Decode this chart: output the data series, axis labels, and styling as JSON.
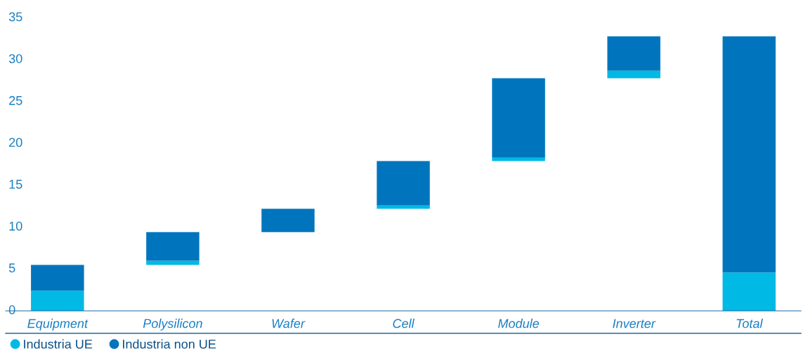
{
  "chart_data": {
    "type": "bar",
    "categories": [
      "Equipment",
      "Polysilicon",
      "Wafer",
      "Cell",
      "Module",
      "Inverter",
      "Total"
    ],
    "series": [
      {
        "name": "Industria UE",
        "color": "#00b9e4",
        "base": [
          0,
          5.5,
          null,
          12.2,
          17.9,
          27.8,
          0
        ],
        "values": [
          2.4,
          0.5,
          null,
          0.4,
          0.4,
          0.9,
          4.6
        ]
      },
      {
        "name": "Industria non UE",
        "color": "#0075be",
        "base": [
          2.4,
          6.0,
          9.4,
          12.6,
          18.3,
          28.7,
          4.6
        ],
        "values": [
          3.1,
          3.4,
          2.8,
          5.3,
          9.5,
          4.1,
          28.2
        ]
      }
    ],
    "ylim": [
      0,
      35
    ],
    "yticks": [
      0,
      5,
      10,
      15,
      20,
      25,
      30,
      35
    ],
    "grid": false,
    "legend": "bottom left"
  }
}
